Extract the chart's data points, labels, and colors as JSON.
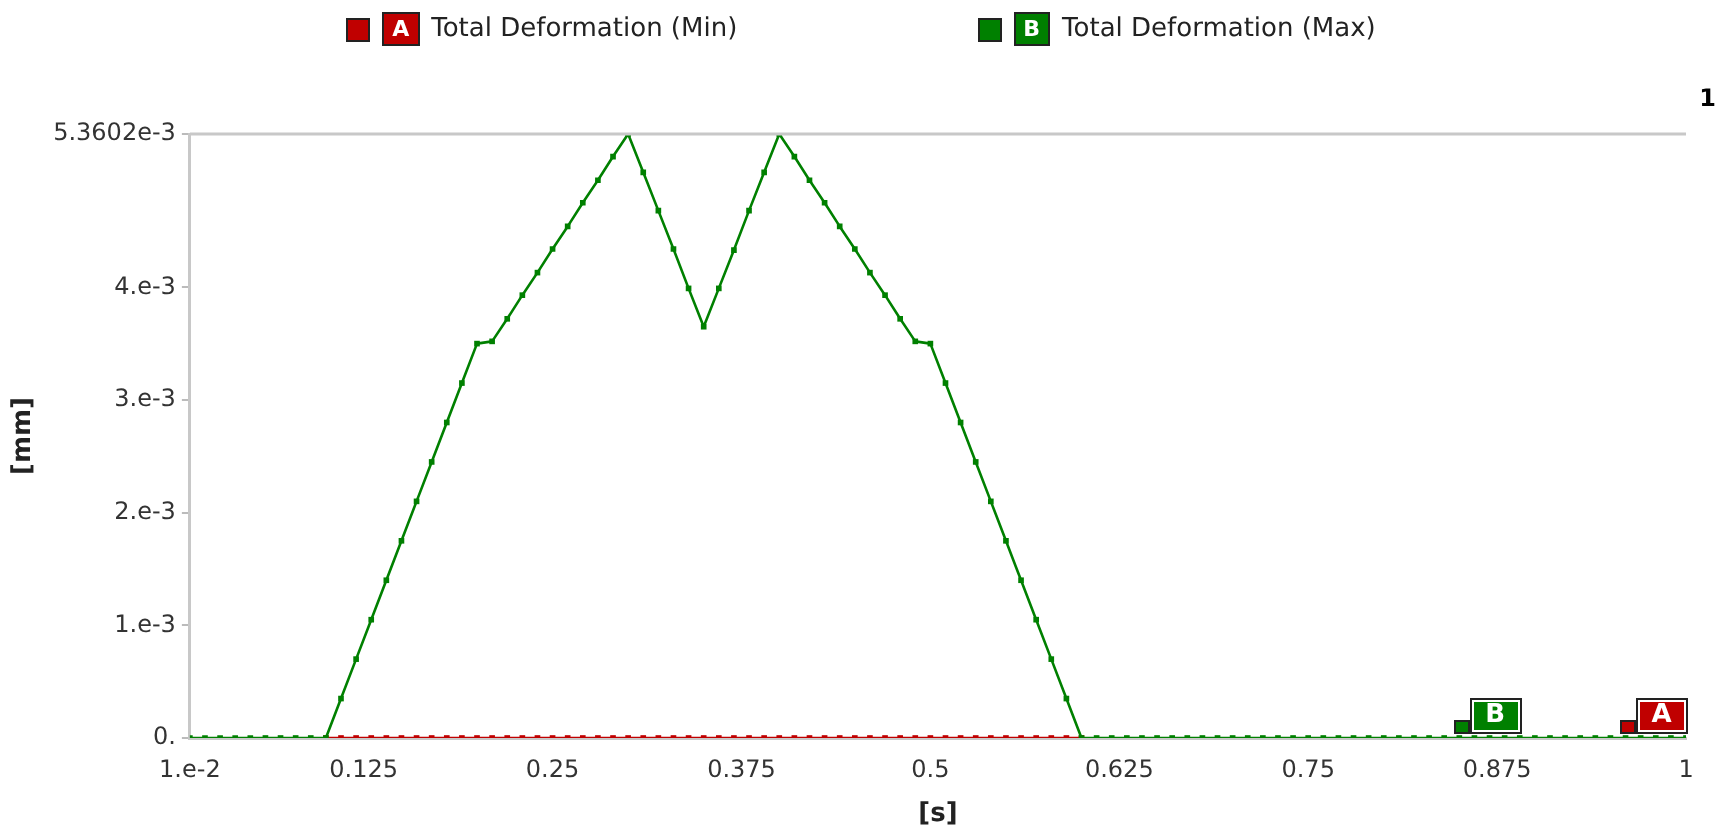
{
  "chart_data": {
    "type": "line",
    "xlabel": "[s]",
    "ylabel": "[mm]",
    "x": [
      0.01,
      0.02,
      0.03,
      0.04,
      0.05,
      0.06,
      0.07,
      0.08,
      0.09,
      0.1,
      0.11,
      0.12,
      0.13,
      0.14,
      0.15,
      0.16,
      0.17,
      0.18,
      0.19,
      0.2,
      0.21,
      0.22,
      0.23,
      0.24,
      0.25,
      0.26,
      0.27,
      0.28,
      0.29,
      0.3,
      0.31,
      0.32,
      0.33,
      0.34,
      0.35,
      0.36,
      0.37,
      0.38,
      0.39,
      0.4,
      0.41,
      0.42,
      0.43,
      0.44,
      0.45,
      0.46,
      0.47,
      0.48,
      0.49,
      0.5,
      0.51,
      0.52,
      0.53,
      0.54,
      0.55,
      0.56,
      0.57,
      0.58,
      0.59,
      0.6,
      0.61,
      0.62,
      0.63,
      0.64,
      0.65,
      0.66,
      0.67,
      0.68,
      0.69,
      0.7,
      0.71,
      0.72,
      0.73,
      0.74,
      0.75,
      0.76,
      0.77,
      0.78,
      0.79,
      0.8,
      0.81,
      0.82,
      0.83,
      0.84,
      0.85,
      0.86,
      0.87,
      0.88,
      0.89,
      0.9,
      0.91,
      0.92,
      0.93,
      0.94,
      0.95,
      0.96,
      0.97,
      0.98,
      0.99,
      1
    ],
    "series": [
      {
        "name": "Total Deformation (Min)",
        "color": "#c00000",
        "values": [
          null,
          null,
          null,
          null,
          null,
          null,
          null,
          null,
          null,
          0,
          0,
          0,
          0,
          0,
          0,
          0,
          0,
          0,
          0,
          0,
          0,
          0,
          0,
          0,
          0,
          0,
          0,
          0,
          0,
          0,
          0,
          0,
          0,
          0,
          0,
          0,
          0,
          0,
          0,
          0,
          0,
          0,
          0,
          0,
          0,
          0,
          0,
          0,
          0,
          0,
          0,
          0,
          0,
          0,
          0,
          0,
          0,
          0,
          0,
          0,
          null,
          null,
          null,
          null,
          null,
          null,
          null,
          null,
          null,
          null,
          null,
          null,
          null,
          null,
          null,
          null,
          null,
          null,
          null,
          null,
          null,
          null,
          null,
          null,
          null,
          null,
          null,
          null,
          null,
          null,
          null,
          null,
          null,
          null,
          null,
          null,
          null,
          null,
          null,
          null
        ]
      },
      {
        "name": "Total Deformation (Max)",
        "color": "#008000",
        "values": [
          0,
          0,
          0,
          0,
          0,
          0,
          0,
          0,
          0,
          0,
          0.00035,
          0.0007,
          0.00105,
          0.0014,
          0.00175,
          0.0021,
          0.00245,
          0.0028,
          0.00315,
          0.0035,
          0.00352,
          0.00372,
          0.00393,
          0.00413,
          0.00434,
          0.00454,
          0.00475,
          0.00495,
          0.00516,
          0.0053602,
          0.00502,
          0.00468,
          0.00434,
          0.00399,
          0.00365,
          0.00399,
          0.00433,
          0.00468,
          0.00502,
          0.0053602,
          0.00516,
          0.00495,
          0.00475,
          0.00454,
          0.00434,
          0.00413,
          0.00393,
          0.00372,
          0.00352,
          0.0035,
          0.00315,
          0.0028,
          0.00245,
          0.0021,
          0.00175,
          0.0014,
          0.00105,
          0.0007,
          0.00035,
          0,
          0,
          0,
          0,
          0,
          0,
          0,
          0,
          0,
          0,
          0,
          0,
          0,
          0,
          0,
          0,
          0,
          0,
          0,
          0,
          0,
          0,
          0,
          0,
          0,
          0,
          0,
          0,
          0,
          0,
          0,
          0,
          0,
          0,
          0,
          0,
          0,
          0,
          0,
          0,
          0
        ]
      }
    ],
    "annotations": [
      {
        "text": "A",
        "x": 0.96,
        "y": 0
      },
      {
        "text": "B",
        "x": 0.85,
        "y": 0
      },
      "1"
    ],
    "xlim": [
      0.01,
      1
    ],
    "xticks": [
      {
        "value": 0.01,
        "label": "1.e-2"
      },
      0.125,
      0.25,
      0.375,
      0.5,
      0.625,
      0.75,
      0.875,
      1
    ],
    "ylim": [
      0,
      0.0053602
    ],
    "yticks": [
      {
        "value": 0,
        "label": "0."
      },
      {
        "value": 0.001,
        "label": "1.e-3"
      },
      {
        "value": 0.002,
        "label": "2.e-3"
      },
      {
        "value": 0.003,
        "label": "3.e-3"
      },
      {
        "value": 0.004,
        "label": "4.e-3"
      },
      {
        "value": 0.0053602,
        "label": "5.3602e-3"
      }
    ],
    "grid": false,
    "legend": "top",
    "marker": "square",
    "line_style": "solid"
  }
}
